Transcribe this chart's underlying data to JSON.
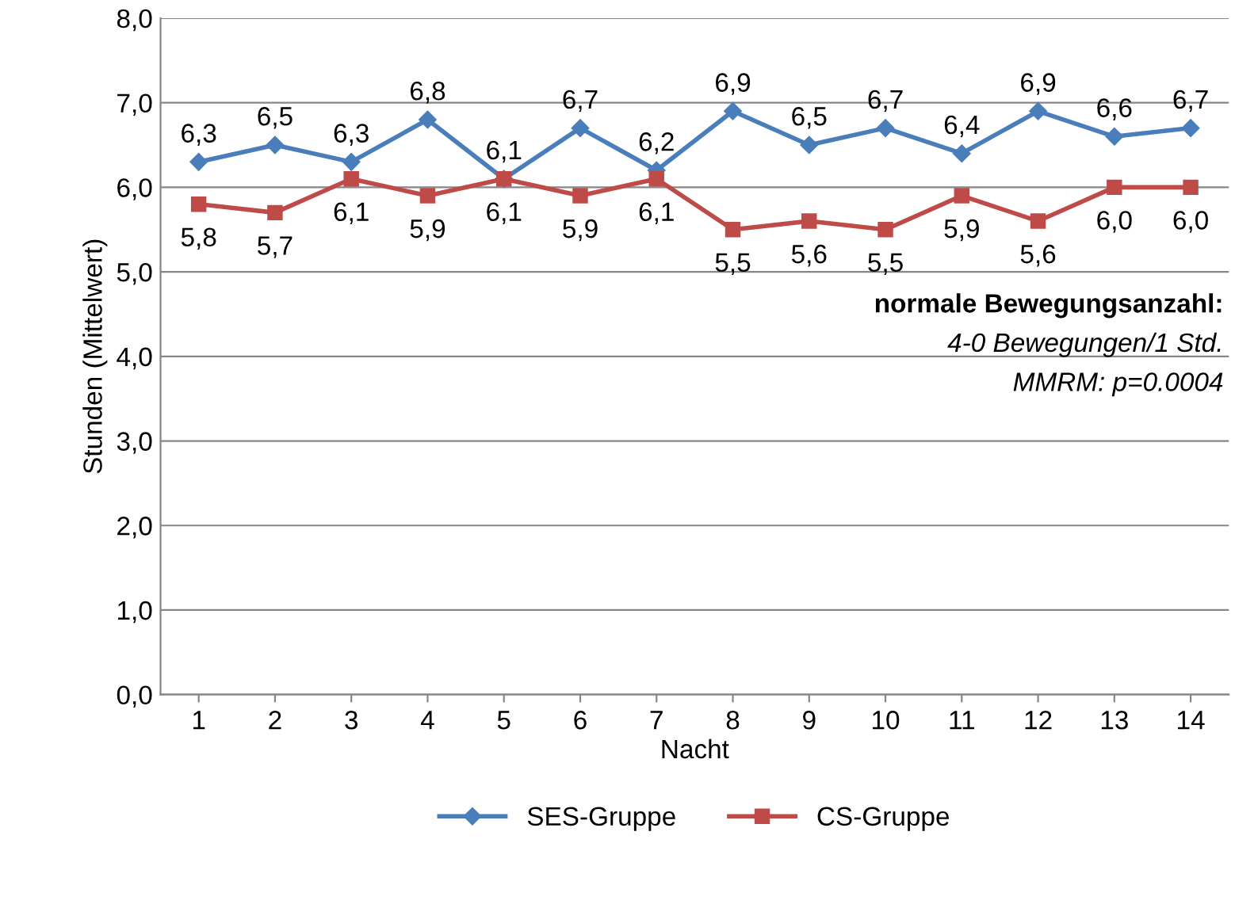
{
  "chart_data": {
    "type": "line",
    "ylabel": "Stunden (Mittelwert)",
    "xlabel": "Nacht",
    "categories": [
      "1",
      "2",
      "3",
      "4",
      "5",
      "6",
      "7",
      "8",
      "9",
      "10",
      "11",
      "12",
      "13",
      "14"
    ],
    "series": [
      {
        "name": "SES-Gruppe",
        "color": "#4a7ebb",
        "marker": "diamond",
        "values": [
          6.3,
          6.5,
          6.3,
          6.8,
          6.1,
          6.7,
          6.2,
          6.9,
          6.5,
          6.7,
          6.4,
          6.9,
          6.6,
          6.7
        ],
        "value_labels": [
          "6,3",
          "6,5",
          "6,3",
          "6,8",
          "6,1",
          "6,7",
          "6,2",
          "6,9",
          "6,5",
          "6,7",
          "6,4",
          "6,9",
          "6,6",
          "6,7"
        ]
      },
      {
        "name": "CS-Gruppe",
        "color": "#be4b48",
        "marker": "square",
        "values": [
          5.8,
          5.7,
          6.1,
          5.9,
          6.1,
          5.9,
          6.1,
          5.5,
          5.6,
          5.5,
          5.9,
          5.6,
          6.0,
          6.0
        ],
        "value_labels": [
          "5,8",
          "5,7",
          "6,1",
          "5,9",
          "6,1",
          "5,9",
          "6,1",
          "5,5",
          "5,6",
          "5,5",
          "5,9",
          "5,6",
          "6,0",
          "6,0"
        ]
      }
    ],
    "ylim": [
      0,
      8
    ],
    "yticks": [
      {
        "value": 0,
        "label": "0,0"
      },
      {
        "value": 1,
        "label": "1,0"
      },
      {
        "value": 2,
        "label": "2,0"
      },
      {
        "value": 3,
        "label": "3,0"
      },
      {
        "value": 4,
        "label": "4,0"
      },
      {
        "value": 5,
        "label": "5,0"
      },
      {
        "value": 6,
        "label": "6,0"
      },
      {
        "value": 7,
        "label": "7,0"
      },
      {
        "value": 8,
        "label": "8,0"
      }
    ],
    "grid": "y",
    "legend": "bottom",
    "line_style": "solid",
    "annotations": [
      "normale Bewegungsanzahl:",
      "4-0 Bewegungen/1 Std.",
      "MMRM: p=0.0004"
    ]
  }
}
